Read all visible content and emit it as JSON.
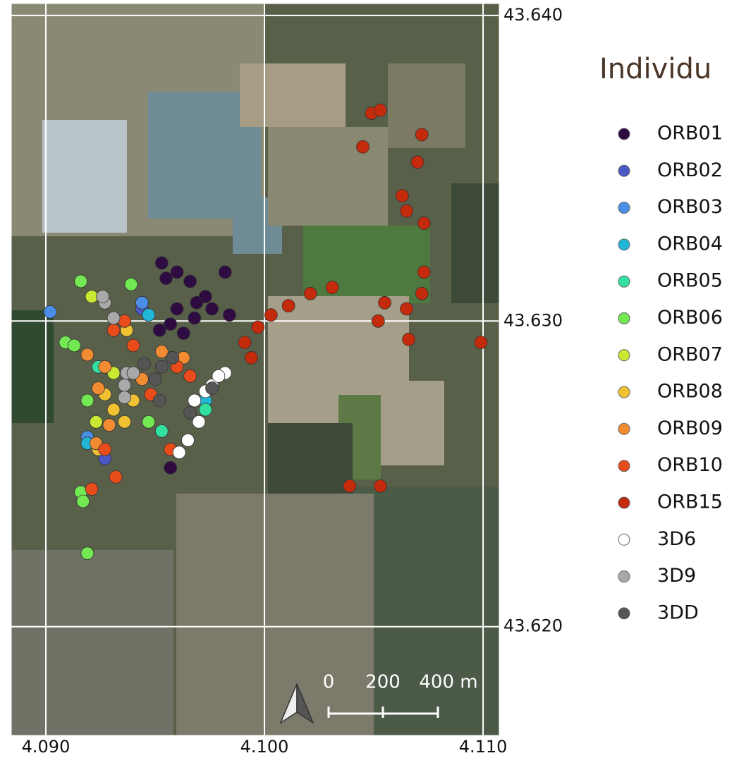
{
  "map": {
    "xlim": [
      4.08842,
      4.11074
    ],
    "ylim": [
      43.61644,
      43.64039
    ],
    "xticks": [
      {
        "value": 4.09,
        "label": "4.090"
      },
      {
        "value": 4.1,
        "label": "4.100"
      },
      {
        "value": 4.11,
        "label": "4.110"
      }
    ],
    "yticks": [
      {
        "value": 43.64,
        "label": "43.640"
      },
      {
        "value": 43.63,
        "label": "43.630"
      },
      {
        "value": 43.62,
        "label": "43.620"
      }
    ],
    "legend_title": "Individu",
    "scale_bar": [
      "0",
      "200",
      "400 m"
    ],
    "series": [
      {
        "name": "ORB01",
        "color": "#2e0b40",
        "points": [
          [
            4.0953,
            43.6319
          ],
          [
            4.096,
            43.6316
          ],
          [
            4.0966,
            43.6313
          ],
          [
            4.0973,
            43.6308
          ],
          [
            4.0976,
            43.6304
          ],
          [
            4.0957,
            43.6299
          ],
          [
            4.0963,
            43.6296
          ],
          [
            4.0952,
            43.6297
          ],
          [
            4.0982,
            43.6316
          ],
          [
            4.0984,
            43.6302
          ],
          [
            4.0957,
            43.6252
          ],
          [
            4.0955,
            43.6314
          ],
          [
            4.0969,
            43.6306
          ],
          [
            4.096,
            43.6304
          ],
          [
            4.0968,
            43.6301
          ]
        ]
      },
      {
        "name": "ORB02",
        "color": "#4a57c4",
        "points": [
          [
            4.0927,
            43.6255
          ],
          [
            4.0944,
            43.6304
          ]
        ]
      },
      {
        "name": "ORB03",
        "color": "#4a8ee8",
        "points": [
          [
            4.0902,
            43.6303
          ],
          [
            4.0944,
            43.6306
          ],
          [
            4.0919,
            43.6262
          ]
        ]
      },
      {
        "name": "ORB04",
        "color": "#22b6d6",
        "points": [
          [
            4.0947,
            43.6302
          ],
          [
            4.0919,
            43.626
          ],
          [
            4.0973,
            43.6274
          ]
        ]
      },
      {
        "name": "ORB05",
        "color": "#33e0a0",
        "points": [
          [
            4.0924,
            43.6285
          ],
          [
            4.0973,
            43.6271
          ],
          [
            4.0953,
            43.6264
          ]
        ]
      },
      {
        "name": "ORB06",
        "color": "#72e852",
        "points": [
          [
            4.0916,
            43.6313
          ],
          [
            4.0909,
            43.6293
          ],
          [
            4.0919,
            43.6274
          ],
          [
            4.0916,
            43.6244
          ],
          [
            4.0917,
            43.6241
          ],
          [
            4.0919,
            43.6224
          ],
          [
            4.0947,
            43.6267
          ],
          [
            4.0913,
            43.6292
          ],
          [
            4.0939,
            43.6312
          ]
        ]
      },
      {
        "name": "ORB07",
        "color": "#c8e832",
        "points": [
          [
            4.0931,
            43.6283
          ],
          [
            4.0923,
            43.6267
          ],
          [
            4.0921,
            43.6308
          ]
        ]
      },
      {
        "name": "ORB08",
        "color": "#f0c232",
        "points": [
          [
            4.0931,
            43.6271
          ],
          [
            4.0936,
            43.6267
          ],
          [
            4.0927,
            43.6276
          ],
          [
            4.094,
            43.6274
          ],
          [
            4.0924,
            43.6258
          ],
          [
            4.0937,
            43.6297
          ]
        ]
      },
      {
        "name": "ORB09",
        "color": "#f28c32",
        "points": [
          [
            4.0919,
            43.6289
          ],
          [
            4.0927,
            43.6285
          ],
          [
            4.0924,
            43.6278
          ],
          [
            4.0944,
            43.6281
          ],
          [
            4.0953,
            43.629
          ],
          [
            4.0963,
            43.6288
          ],
          [
            4.0923,
            43.626
          ],
          [
            4.0929,
            43.6266
          ]
        ]
      },
      {
        "name": "ORB10",
        "color": "#e84c1a",
        "points": [
          [
            4.0931,
            43.6297
          ],
          [
            4.094,
            43.6292
          ],
          [
            4.096,
            43.6285
          ],
          [
            4.0966,
            43.6282
          ],
          [
            4.0927,
            43.6258
          ],
          [
            4.0957,
            43.6258
          ],
          [
            4.0932,
            43.6249
          ],
          [
            4.0921,
            43.6245
          ],
          [
            4.0948,
            43.6276
          ],
          [
            4.0936,
            43.63
          ]
        ]
      },
      {
        "name": "ORB15",
        "color": "#c42a0c",
        "points": [
          [
            4.1049,
            43.6368
          ],
          [
            4.1053,
            43.6369
          ],
          [
            4.1072,
            43.6361
          ],
          [
            4.1045,
            43.6357
          ],
          [
            4.107,
            43.6352
          ],
          [
            4.1063,
            43.6341
          ],
          [
            4.1065,
            43.6336
          ],
          [
            4.1073,
            43.6332
          ],
          [
            4.1073,
            43.6316
          ],
          [
            4.1072,
            43.6309
          ],
          [
            4.1055,
            43.6306
          ],
          [
            4.1052,
            43.63
          ],
          [
            4.1065,
            43.6304
          ],
          [
            4.1066,
            43.6294
          ],
          [
            4.1099,
            43.6293
          ],
          [
            4.1031,
            43.6311
          ],
          [
            4.1021,
            43.6309
          ],
          [
            4.1011,
            43.6305
          ],
          [
            4.1003,
            43.6302
          ],
          [
            4.0997,
            43.6298
          ],
          [
            4.0991,
            43.6293
          ],
          [
            4.0994,
            43.6288
          ],
          [
            4.1039,
            43.6246
          ],
          [
            4.1053,
            43.6246
          ]
        ]
      },
      {
        "name": "3D6",
        "color": "#ffffff",
        "points": [
          [
            4.0982,
            43.6283
          ],
          [
            4.0976,
            43.6279
          ],
          [
            4.0973,
            43.6277
          ],
          [
            4.0968,
            43.6274
          ],
          [
            4.097,
            43.6267
          ],
          [
            4.0965,
            43.6261
          ],
          [
            4.0961,
            43.6257
          ],
          [
            4.0979,
            43.6282
          ]
        ]
      },
      {
        "name": "3D9",
        "color": "#a9a9a9",
        "points": [
          [
            4.0927,
            43.6306
          ],
          [
            4.0931,
            43.6301
          ],
          [
            4.0937,
            43.6283
          ],
          [
            4.0936,
            43.6279
          ],
          [
            4.094,
            43.6283
          ],
          [
            4.0936,
            43.6275
          ],
          [
            4.0926,
            43.6308
          ]
        ]
      },
      {
        "name": "3DD",
        "color": "#555555",
        "points": [
          [
            4.0953,
            43.6285
          ],
          [
            4.0958,
            43.6288
          ],
          [
            4.095,
            43.6281
          ],
          [
            4.0976,
            43.6278
          ],
          [
            4.0966,
            43.627
          ],
          [
            4.0952,
            43.6274
          ],
          [
            4.0945,
            43.6286
          ]
        ]
      }
    ]
  }
}
